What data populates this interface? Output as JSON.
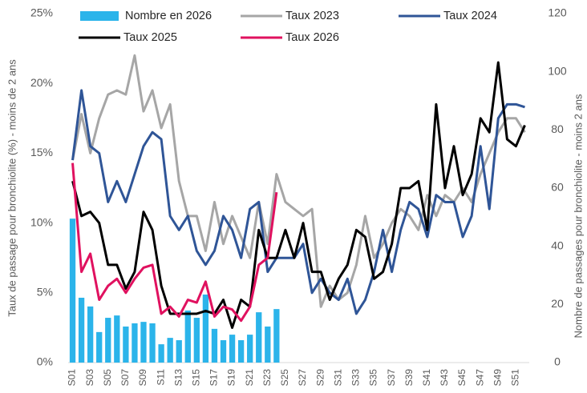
{
  "chart_data": {
    "type": "bar-line",
    "y_label": "Taux de passage pour bronchiolite (%) - moins de 2 ans",
    "y2_label": "Nombre de passages pour bronchiolite - moins 2 ans",
    "categories": [
      "S01",
      null,
      "S03",
      null,
      "S05",
      null,
      "S07",
      null,
      "S09",
      null,
      "S11",
      null,
      "S13",
      null,
      "S15",
      null,
      "S17",
      null,
      "S19",
      null,
      "S21",
      null,
      "S23",
      null,
      "S25",
      null,
      "S27",
      null,
      "S29",
      null,
      "S31",
      null,
      "S33",
      null,
      "S35",
      null,
      "S37",
      null,
      "S39",
      null,
      "S41",
      null,
      "S43",
      null,
      "S45",
      null,
      "S47",
      null,
      "S49",
      null,
      "S51",
      null
    ],
    "ylim": [
      0,
      25
    ],
    "yticks": [
      {
        "value": 0,
        "label": "0%"
      },
      {
        "value": 5,
        "label": "5%"
      },
      {
        "value": 10,
        "label": "10%"
      },
      {
        "value": 15,
        "label": "15%"
      },
      {
        "value": 20,
        "label": "20%"
      },
      {
        "value": 25,
        "label": "25%"
      }
    ],
    "y2lim": [
      0,
      120
    ],
    "y2ticks": [
      0,
      20,
      40,
      60,
      80,
      100,
      120
    ],
    "series": [
      {
        "name": "Nombre en 2026",
        "type": "bar",
        "axis": "y2",
        "color": "#2bb4ea",
        "values": [
          49.5,
          22.3,
          19.3,
          10.5,
          15.4,
          16.2,
          12.4,
          13.5,
          14,
          13.5,
          6.3,
          8.5,
          7.7,
          17.9,
          15.4,
          23.4,
          11.6,
          7.7,
          9.6,
          7.7,
          9.6,
          17.3,
          12.4,
          18.4,
          null,
          null,
          null,
          null,
          null,
          null,
          null,
          null,
          null,
          null,
          null,
          null,
          null,
          null,
          null,
          null,
          null,
          null,
          null,
          null,
          null,
          null,
          null,
          null,
          null,
          null,
          null,
          null
        ]
      },
      {
        "name": "Taux 2023",
        "type": "line",
        "color": "#a6a6a6",
        "values": [
          14.5,
          17.8,
          15,
          17.5,
          19.2,
          19.5,
          19.2,
          22,
          18,
          19.5,
          16.8,
          18.5,
          13,
          10.5,
          10.5,
          8,
          11.5,
          8.5,
          10.5,
          9,
          7.5,
          11.5,
          8.5,
          13.5,
          11.5,
          11,
          10.5,
          11,
          4,
          5.5,
          4.5,
          5,
          7,
          10.5,
          7.5,
          8.5,
          10,
          11,
          10.5,
          9.5,
          12,
          10.5,
          12,
          11.5,
          12.5,
          11.5,
          13.5,
          15,
          16.5,
          17.5,
          17.5,
          16.5
        ]
      },
      {
        "name": "Taux 2024",
        "type": "line",
        "color": "#2f5597",
        "values": [
          14.5,
          19.5,
          15.5,
          15,
          11.5,
          13,
          11.5,
          13.5,
          15.5,
          16.5,
          16,
          10.5,
          9.5,
          10.5,
          8,
          7,
          8,
          10.5,
          9.5,
          7.5,
          11,
          11.5,
          6.5,
          7.5,
          7.5,
          7.5,
          8.5,
          5,
          6,
          5,
          4.5,
          6,
          3.5,
          4.5,
          6.5,
          9.5,
          6.5,
          9.5,
          11.5,
          11,
          9,
          12,
          11.5,
          11.5,
          9,
          10.5,
          15.5,
          11,
          17.5,
          18.5,
          18.5,
          18.3
        ]
      },
      {
        "name": "Taux 2025",
        "type": "line",
        "color": "#000000",
        "values": [
          13,
          10.5,
          10.8,
          10,
          7,
          7,
          5.3,
          6.5,
          10.8,
          9.5,
          5.5,
          3.5,
          3.5,
          3.5,
          3.5,
          3.7,
          3.5,
          4.5,
          2.5,
          4.5,
          4,
          9.5,
          7.5,
          7.5,
          9.5,
          7.5,
          10,
          6.5,
          6.5,
          4.5,
          6,
          7,
          9.5,
          9,
          6,
          6.5,
          8.5,
          12.5,
          12.5,
          13,
          9.5,
          18.5,
          12.5,
          15.5,
          12,
          13.5,
          17.5,
          16.5,
          21.5,
          16,
          15.5,
          17
        ]
      },
      {
        "name": "Taux 2026",
        "type": "line",
        "color": "#e0115f",
        "values": [
          14.3,
          6.5,
          7.8,
          4.5,
          5.5,
          6,
          5,
          6,
          6.8,
          7,
          3.5,
          4,
          3.3,
          4.5,
          4.3,
          5.8,
          3.3,
          4,
          3.8,
          3,
          4,
          7,
          7.5,
          12.2,
          null,
          null,
          null,
          null,
          null,
          null,
          null,
          null,
          null,
          null,
          null,
          null,
          null,
          null,
          null,
          null,
          null,
          null,
          null,
          null,
          null,
          null,
          null,
          null,
          null,
          null,
          null,
          null
        ]
      }
    ]
  }
}
